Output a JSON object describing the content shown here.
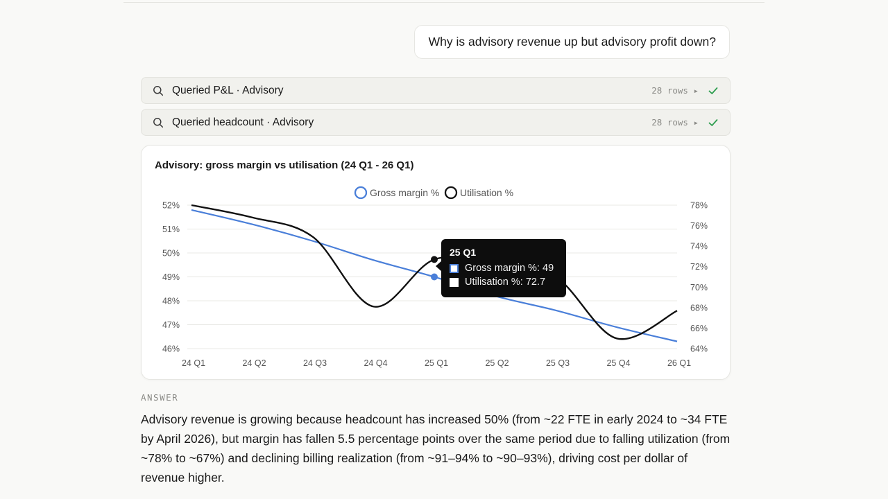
{
  "conversation": {
    "user_message": "Why is advisory revenue up but advisory profit down?",
    "tool_calls": [
      {
        "icon": "search-icon",
        "label": "Queried P&L · Advisory",
        "rows": "28 rows ▸",
        "status": "check-icon"
      },
      {
        "icon": "search-icon",
        "label": "Queried headcount · Advisory",
        "rows": "28 rows ▸",
        "status": "check-icon"
      }
    ],
    "answer_label": "ANSWER",
    "answer_text": "Advisory revenue is growing because headcount has increased 50% (from ~22 FTE in early 2024 to ~34 FTE by April 2026), but margin has fallen 5.5 percentage points over the same period due to falling utilization (from ~78% to ~67%) and declining billing realization (from ~91–94% to ~90–93%), driving cost per dollar of revenue higher."
  },
  "colors": {
    "accent_blue": "#4a7fd9",
    "line_black": "#111111",
    "check_green": "#2e9e4f"
  },
  "chart_data": {
    "type": "line",
    "title": "Advisory: gross margin vs utilisation (24 Q1 - 26 Q1)",
    "categories": [
      "24 Q1",
      "24 Q2",
      "24 Q3",
      "24 Q4",
      "25 Q1",
      "25 Q2",
      "25 Q3",
      "25 Q4",
      "26 Q1"
    ],
    "series": [
      {
        "name": "Gross margin %",
        "axis": "left",
        "color": "#4a7fd9",
        "values": [
          51.8,
          51.2,
          50.5,
          49.7,
          49.0,
          48.2,
          47.6,
          46.9,
          46.3
        ]
      },
      {
        "name": "Utilisation %",
        "axis": "right",
        "color": "#111111",
        "values": [
          78.0,
          76.8,
          74.9,
          68.1,
          72.7,
          72.2,
          71.0,
          65.0,
          67.7
        ]
      }
    ],
    "y_left": {
      "ylim": [
        46,
        52
      ],
      "ticks": [
        "52%",
        "51%",
        "50%",
        "49%",
        "48%",
        "47%",
        "46%"
      ]
    },
    "y_right": {
      "ylim": [
        64,
        78
      ],
      "ticks": [
        "78%",
        "76%",
        "74%",
        "72%",
        "70%",
        "68%",
        "66%",
        "64%"
      ]
    },
    "grid": true,
    "legend_position": "top-center",
    "tooltip": {
      "title": "25 Q1",
      "rows": [
        "Gross margin %: 49",
        "Utilisation %: 72.7"
      ]
    }
  }
}
